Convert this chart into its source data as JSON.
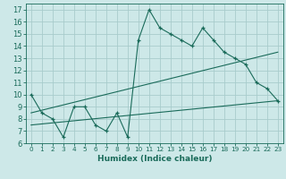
{
  "xlabel": "Humidex (Indice chaleur)",
  "background_color": "#cde8e8",
  "grid_color": "#a8cccc",
  "line_color": "#1a6b5a",
  "xlim": [
    -0.5,
    23.5
  ],
  "ylim": [
    6,
    17.5
  ],
  "xticks": [
    0,
    1,
    2,
    3,
    4,
    5,
    6,
    7,
    8,
    9,
    10,
    11,
    12,
    13,
    14,
    15,
    16,
    17,
    18,
    19,
    20,
    21,
    22,
    23
  ],
  "yticks": [
    6,
    7,
    8,
    9,
    10,
    11,
    12,
    13,
    14,
    15,
    16,
    17
  ],
  "main_x": [
    0,
    1,
    2,
    3,
    4,
    5,
    6,
    7,
    8,
    9,
    10,
    11,
    12,
    13,
    14,
    15,
    16,
    17,
    18,
    19,
    20,
    21,
    22,
    23
  ],
  "main_y": [
    10,
    8.5,
    8,
    6.5,
    9,
    9,
    7.5,
    7,
    8.5,
    6.5,
    14.5,
    17,
    15.5,
    15,
    14.5,
    14,
    15.5,
    14.5,
    13.5,
    13,
    12.5,
    11,
    10.5,
    9.5
  ],
  "trend1_x": [
    0,
    23
  ],
  "trend1_y": [
    8.5,
    13.5
  ],
  "trend2_x": [
    0,
    23
  ],
  "trend2_y": [
    7.5,
    9.5
  ],
  "marker_size": 3.5,
  "linewidth": 0.8
}
